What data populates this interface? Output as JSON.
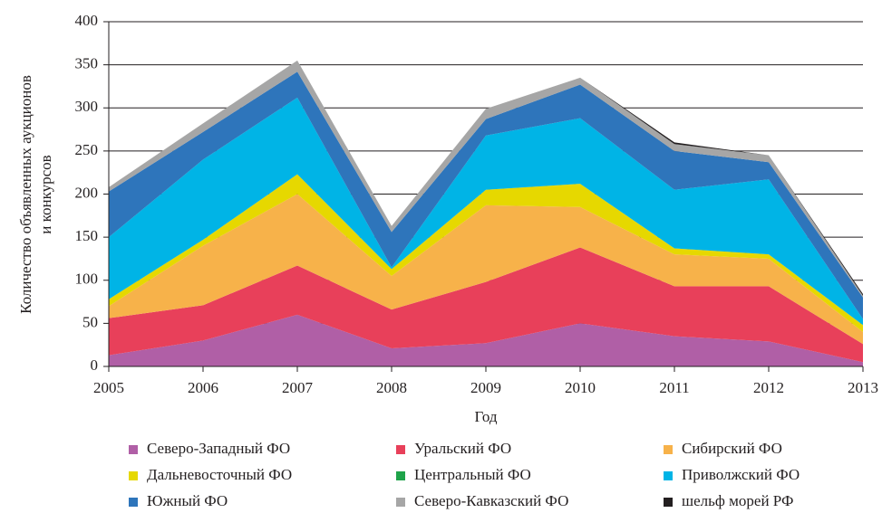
{
  "chart_data": {
    "type": "stacked_area",
    "x_label": "Год",
    "y_label": [
      "Количество объявленных аукционов",
      "и конкурсов"
    ],
    "x": [
      2005,
      2006,
      2007,
      2008,
      2009,
      2010,
      2011,
      2012,
      2013
    ],
    "xlim": [
      2005,
      2013
    ],
    "xticks": [
      2005,
      2006,
      2007,
      2008,
      2009,
      2010,
      2011,
      2012,
      2013
    ],
    "ylim": [
      0,
      400
    ],
    "yticks": [
      0,
      50,
      100,
      150,
      200,
      250,
      300,
      350,
      400
    ],
    "grid": true,
    "series": [
      {
        "name": "Северо-Западный ФО",
        "color": "#b05fa6",
        "values": [
          13,
          30,
          60,
          21,
          27,
          50,
          35,
          29,
          5
        ]
      },
      {
        "name": "Уральский ФО",
        "color": "#e8405a",
        "values": [
          43,
          41,
          57,
          45,
          71,
          88,
          58,
          64,
          21
        ]
      },
      {
        "name": "Сибирский ФО",
        "color": "#f7b24a",
        "values": [
          14,
          69,
          83,
          39,
          89,
          47,
          37,
          32,
          14
        ]
      },
      {
        "name": "Дальневосточный ФО",
        "color": "#e6d800",
        "values": [
          8,
          7,
          23,
          8,
          18,
          27,
          7,
          5,
          8
        ]
      },
      {
        "name": "Центральный ФО",
        "color": "#1fa34a",
        "values": [
          0,
          0,
          0,
          0,
          0,
          0,
          0,
          0,
          0
        ]
      },
      {
        "name": "Приволжский ФО",
        "color": "#00b4e6",
        "values": [
          72,
          93,
          89,
          2,
          63,
          76,
          68,
          87,
          7
        ]
      },
      {
        "name": "Южный ФО",
        "color": "#2e75bb",
        "values": [
          53,
          32,
          30,
          41,
          19,
          39,
          45,
          20,
          25
        ]
      },
      {
        "name": "Северо-Кавказский ФО",
        "color": "#a6a6a6",
        "values": [
          5,
          10,
          13,
          7,
          12,
          8,
          8,
          8,
          2
        ]
      },
      {
        "name": "шельф морей РФ",
        "color": "#231f20",
        "values": [
          0,
          0,
          0,
          0,
          0,
          0,
          2,
          0,
          2
        ]
      }
    ]
  }
}
